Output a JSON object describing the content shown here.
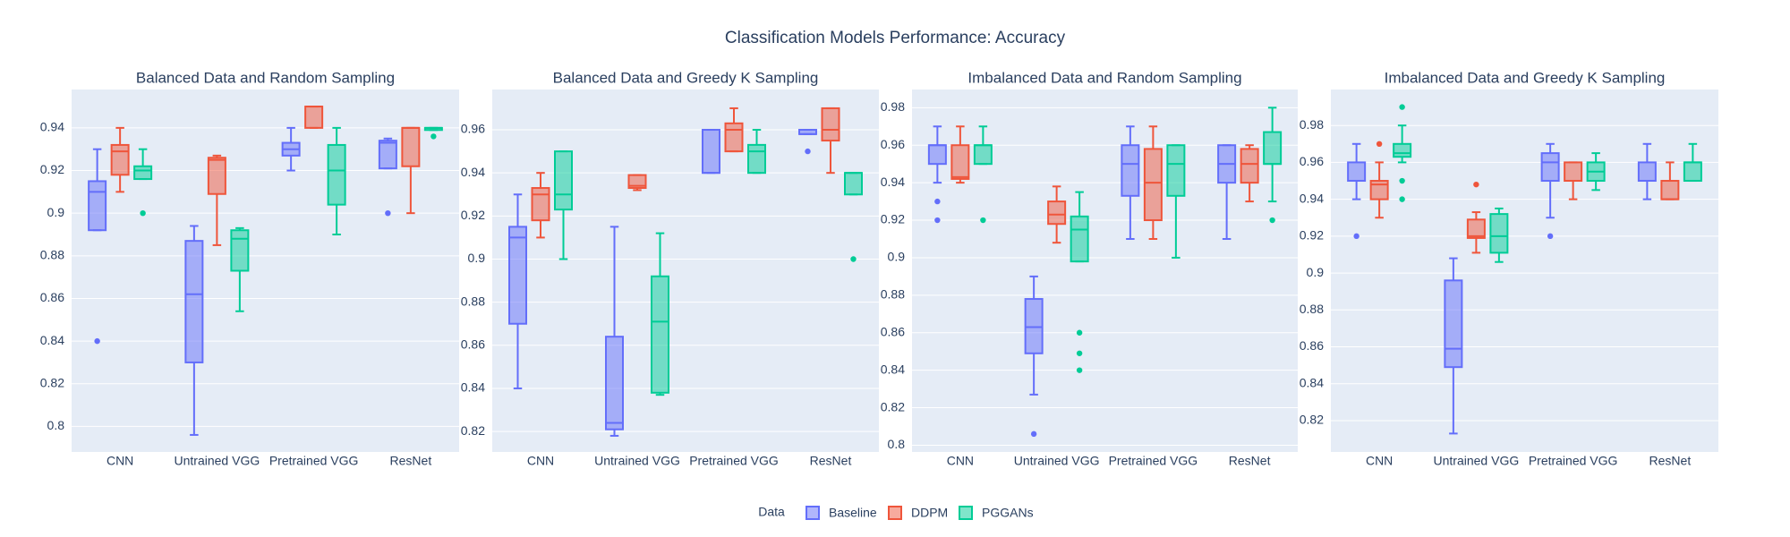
{
  "title": "Classification Models Performance: Accuracy",
  "legend_title": "Data",
  "chart_data": [
    {
      "type": "box",
      "title": "Balanced Data and Random Sampling",
      "categories": [
        "CNN",
        "Untrained VGG",
        "Pretrained VGG",
        "ResNet"
      ],
      "ylim": [
        0.788,
        0.958
      ],
      "yticks": [
        0.8,
        0.82,
        0.84,
        0.86,
        0.88,
        0.9,
        0.92,
        0.94
      ],
      "grid": true,
      "series": [
        {
          "name": "Baseline",
          "color": "#636efa",
          "values": [
            {
              "lower": 0.892,
              "q1": 0.892,
              "median": 0.91,
              "q3": 0.915,
              "upper": 0.93,
              "outliers": [
                0.84
              ]
            },
            {
              "lower": 0.796,
              "q1": 0.83,
              "median": 0.862,
              "q3": 0.887,
              "upper": 0.894
            },
            {
              "lower": 0.92,
              "q1": 0.927,
              "median": 0.93,
              "q3": 0.933,
              "upper": 0.94
            },
            {
              "lower": 0.921,
              "q1": 0.921,
              "median": 0.933,
              "q3": 0.934,
              "upper": 0.935,
              "outliers": [
                0.9
              ]
            }
          ]
        },
        {
          "name": "DDPM",
          "color": "#ef553b",
          "values": [
            {
              "lower": 0.91,
              "q1": 0.918,
              "median": 0.929,
              "q3": 0.932,
              "upper": 0.94
            },
            {
              "lower": 0.885,
              "q1": 0.909,
              "median": 0.925,
              "q3": 0.926,
              "upper": 0.927
            },
            {
              "lower": 0.94,
              "q1": 0.94,
              "median": 0.95,
              "q3": 0.95,
              "upper": 0.95
            },
            {
              "lower": 0.9,
              "q1": 0.922,
              "median": 0.94,
              "q3": 0.94,
              "upper": 0.94
            }
          ]
        },
        {
          "name": "PGGANs",
          "color": "#00cc96",
          "values": [
            {
              "lower": 0.916,
              "q1": 0.916,
              "median": 0.92,
              "q3": 0.922,
              "upper": 0.93,
              "outliers": [
                0.9
              ]
            },
            {
              "lower": 0.854,
              "q1": 0.873,
              "median": 0.888,
              "q3": 0.892,
              "upper": 0.893
            },
            {
              "lower": 0.89,
              "q1": 0.904,
              "median": 0.92,
              "q3": 0.932,
              "upper": 0.94
            },
            {
              "lower": 0.939,
              "q1": 0.939,
              "median": 0.94,
              "q3": 0.94,
              "upper": 0.94,
              "outliers": [
                0.936
              ]
            }
          ]
        }
      ]
    },
    {
      "type": "box",
      "title": "Balanced Data and Greedy K Sampling",
      "categories": [
        "CNN",
        "Untrained VGG",
        "Pretrained VGG",
        "ResNet"
      ],
      "ylim": [
        0.8105,
        0.9787
      ],
      "yticks": [
        0.82,
        0.84,
        0.86,
        0.88,
        0.9,
        0.92,
        0.94,
        0.96
      ],
      "grid": true,
      "series": [
        {
          "name": "Baseline",
          "color": "#636efa",
          "values": [
            {
              "lower": 0.84,
              "q1": 0.87,
              "median": 0.91,
              "q3": 0.915,
              "upper": 0.93
            },
            {
              "lower": 0.818,
              "q1": 0.821,
              "median": 0.824,
              "q3": 0.864,
              "upper": 0.915
            },
            {
              "lower": 0.94,
              "q1": 0.94,
              "median": 0.94,
              "q3": 0.96,
              "upper": 0.96
            },
            {
              "lower": 0.958,
              "q1": 0.958,
              "median": 0.958,
              "q3": 0.96,
              "upper": 0.96,
              "outliers": [
                0.95
              ]
            }
          ]
        },
        {
          "name": "DDPM",
          "color": "#ef553b",
          "values": [
            {
              "lower": 0.91,
              "q1": 0.918,
              "median": 0.93,
              "q3": 0.933,
              "upper": 0.94
            },
            {
              "lower": 0.932,
              "q1": 0.933,
              "median": 0.934,
              "q3": 0.939,
              "upper": 0.939
            },
            {
              "lower": 0.95,
              "q1": 0.95,
              "median": 0.96,
              "q3": 0.963,
              "upper": 0.97
            },
            {
              "lower": 0.94,
              "q1": 0.955,
              "median": 0.96,
              "q3": 0.97,
              "upper": 0.97
            }
          ]
        },
        {
          "name": "PGGANs",
          "color": "#00cc96",
          "values": [
            {
              "lower": 0.9,
              "q1": 0.923,
              "median": 0.93,
              "q3": 0.95,
              "upper": 0.95
            },
            {
              "lower": 0.837,
              "q1": 0.838,
              "median": 0.871,
              "q3": 0.892,
              "upper": 0.912
            },
            {
              "lower": 0.94,
              "q1": 0.94,
              "median": 0.95,
              "q3": 0.953,
              "upper": 0.96
            },
            {
              "lower": 0.93,
              "q1": 0.93,
              "median": 0.94,
              "q3": 0.94,
              "upper": 0.94,
              "outliers": [
                0.9
              ]
            }
          ]
        }
      ]
    },
    {
      "type": "box",
      "title": "Imbalanced Data and Random Sampling",
      "categories": [
        "CNN",
        "Untrained VGG",
        "Pretrained VGG",
        "ResNet"
      ],
      "ylim": [
        0.7964,
        0.9897
      ],
      "yticks": [
        0.8,
        0.82,
        0.84,
        0.86,
        0.88,
        0.9,
        0.92,
        0.94,
        0.96,
        0.98
      ],
      "grid": true,
      "series": [
        {
          "name": "Baseline",
          "color": "#636efa",
          "values": [
            {
              "lower": 0.94,
              "q1": 0.95,
              "median": 0.96,
              "q3": 0.96,
              "upper": 0.97,
              "outliers": [
                0.93,
                0.92
              ]
            },
            {
              "lower": 0.827,
              "q1": 0.849,
              "median": 0.863,
              "q3": 0.878,
              "upper": 0.89,
              "outliers": [
                0.806
              ]
            },
            {
              "lower": 0.91,
              "q1": 0.933,
              "median": 0.95,
              "q3": 0.96,
              "upper": 0.97
            },
            {
              "lower": 0.91,
              "q1": 0.94,
              "median": 0.95,
              "q3": 0.96,
              "upper": 0.96
            }
          ]
        },
        {
          "name": "DDPM",
          "color": "#ef553b",
          "values": [
            {
              "lower": 0.94,
              "q1": 0.942,
              "median": 0.943,
              "q3": 0.96,
              "upper": 0.97
            },
            {
              "lower": 0.908,
              "q1": 0.918,
              "median": 0.923,
              "q3": 0.93,
              "upper": 0.938
            },
            {
              "lower": 0.91,
              "q1": 0.92,
              "median": 0.94,
              "q3": 0.958,
              "upper": 0.97
            },
            {
              "lower": 0.93,
              "q1": 0.94,
              "median": 0.95,
              "q3": 0.958,
              "upper": 0.96
            }
          ]
        },
        {
          "name": "PGGANs",
          "color": "#00cc96",
          "values": [
            {
              "lower": 0.95,
              "q1": 0.95,
              "median": 0.96,
              "q3": 0.96,
              "upper": 0.97,
              "outliers": [
                0.92
              ]
            },
            {
              "lower": 0.898,
              "q1": 0.898,
              "median": 0.915,
              "q3": 0.922,
              "upper": 0.935,
              "outliers": [
                0.86,
                0.849,
                0.84
              ]
            },
            {
              "lower": 0.9,
              "q1": 0.933,
              "median": 0.95,
              "q3": 0.96,
              "upper": 0.96
            },
            {
              "lower": 0.93,
              "q1": 0.95,
              "median": 0.95,
              "q3": 0.967,
              "upper": 0.98,
              "outliers": [
                0.92
              ]
            }
          ]
        }
      ]
    },
    {
      "type": "box",
      "title": "Imbalanced Data and Greedy K Sampling",
      "categories": [
        "CNN",
        "Untrained VGG",
        "Pretrained VGG",
        "ResNet"
      ],
      "ylim": [
        0.803,
        0.9995
      ],
      "yticks": [
        0.82,
        0.84,
        0.86,
        0.88,
        0.9,
        0.92,
        0.94,
        0.96,
        0.98
      ],
      "grid": true,
      "series": [
        {
          "name": "Baseline",
          "color": "#636efa",
          "values": [
            {
              "lower": 0.94,
              "q1": 0.95,
              "median": 0.95,
              "q3": 0.96,
              "upper": 0.97,
              "outliers": [
                0.92
              ]
            },
            {
              "lower": 0.813,
              "q1": 0.849,
              "median": 0.859,
              "q3": 0.896,
              "upper": 0.908
            },
            {
              "lower": 0.93,
              "q1": 0.95,
              "median": 0.96,
              "q3": 0.965,
              "upper": 0.97,
              "outliers": [
                0.92
              ]
            },
            {
              "lower": 0.94,
              "q1": 0.95,
              "median": 0.95,
              "q3": 0.96,
              "upper": 0.97
            }
          ]
        },
        {
          "name": "DDPM",
          "color": "#ef553b",
          "values": [
            {
              "lower": 0.93,
              "q1": 0.94,
              "median": 0.948,
              "q3": 0.95,
              "upper": 0.96,
              "outliers": [
                0.97
              ]
            },
            {
              "lower": 0.911,
              "q1": 0.919,
              "median": 0.92,
              "q3": 0.929,
              "upper": 0.933,
              "outliers": [
                0.948
              ]
            },
            {
              "lower": 0.94,
              "q1": 0.95,
              "median": 0.95,
              "q3": 0.96,
              "upper": 0.96
            },
            {
              "lower": 0.94,
              "q1": 0.94,
              "median": 0.94,
              "q3": 0.95,
              "upper": 0.96
            }
          ]
        },
        {
          "name": "PGGANs",
          "color": "#00cc96",
          "values": [
            {
              "lower": 0.96,
              "q1": 0.963,
              "median": 0.965,
              "q3": 0.97,
              "upper": 0.98,
              "outliers": [
                0.99,
                0.95,
                0.94
              ]
            },
            {
              "lower": 0.906,
              "q1": 0.911,
              "median": 0.92,
              "q3": 0.932,
              "upper": 0.935
            },
            {
              "lower": 0.945,
              "q1": 0.95,
              "median": 0.955,
              "q3": 0.96,
              "upper": 0.965
            },
            {
              "lower": 0.95,
              "q1": 0.95,
              "median": 0.96,
              "q3": 0.96,
              "upper": 0.97
            }
          ]
        }
      ]
    }
  ]
}
